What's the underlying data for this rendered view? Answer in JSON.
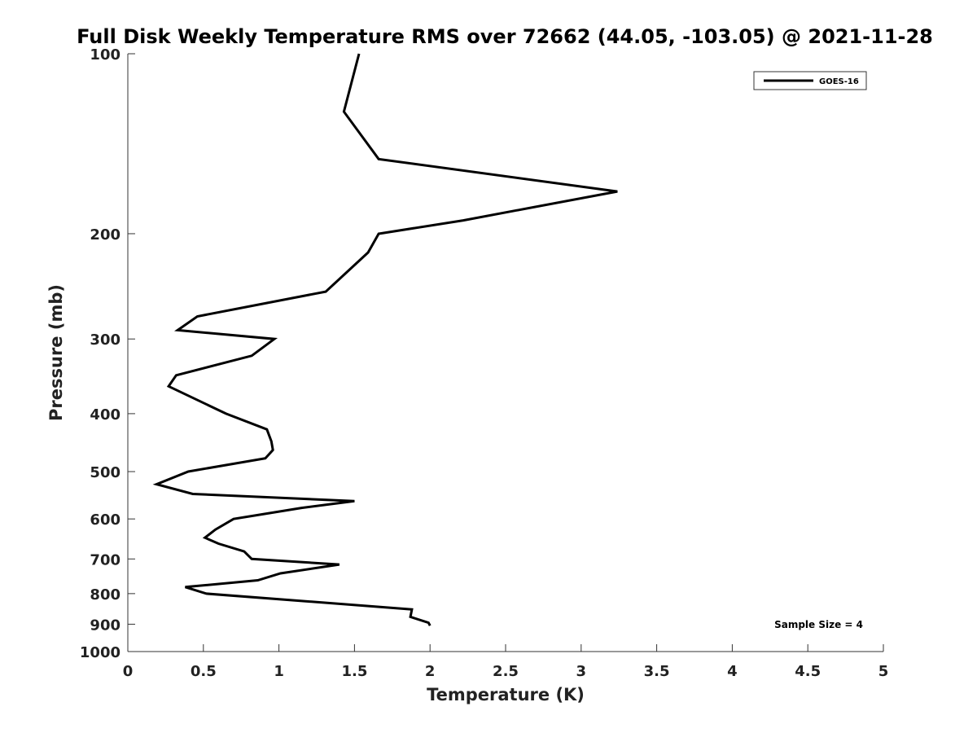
{
  "chart_data": {
    "type": "line",
    "title": "Full Disk Weekly Temperature RMS over 72662 (44.05, -103.05) @ 2021-11-28",
    "xlabel": "Temperature (K)",
    "ylabel": "Pressure (mb)",
    "xlim": [
      0,
      5
    ],
    "ylim": [
      100,
      1000
    ],
    "y_scale": "log",
    "y_reversed": true,
    "grid": false,
    "legend_position": "top-right",
    "x_ticks": [
      0,
      0.5,
      1,
      1.5,
      2,
      2.5,
      3,
      3.5,
      4,
      4.5,
      5
    ],
    "x_tick_labels": [
      "0",
      "0.5",
      "1",
      "1.5",
      "2",
      "2.5",
      "3",
      "3.5",
      "4",
      "4.5",
      "5"
    ],
    "y_ticks": [
      100,
      200,
      300,
      400,
      500,
      600,
      700,
      800,
      900,
      1000
    ],
    "y_tick_labels": [
      "100",
      "200",
      "300",
      "400",
      "500",
      "600",
      "700",
      "800",
      "900",
      "1000"
    ],
    "series": [
      {
        "name": "GOES-16",
        "color": "#000000",
        "points": [
          {
            "x": 1.53,
            "y": 100
          },
          {
            "x": 1.43,
            "y": 125
          },
          {
            "x": 1.66,
            "y": 150
          },
          {
            "x": 3.24,
            "y": 170
          },
          {
            "x": 2.22,
            "y": 190
          },
          {
            "x": 1.66,
            "y": 200
          },
          {
            "x": 1.59,
            "y": 215
          },
          {
            "x": 1.31,
            "y": 250
          },
          {
            "x": 0.46,
            "y": 275
          },
          {
            "x": 0.33,
            "y": 290
          },
          {
            "x": 0.97,
            "y": 300
          },
          {
            "x": 0.82,
            "y": 320
          },
          {
            "x": 0.32,
            "y": 345
          },
          {
            "x": 0.27,
            "y": 360
          },
          {
            "x": 0.65,
            "y": 400
          },
          {
            "x": 0.92,
            "y": 425
          },
          {
            "x": 0.95,
            "y": 445
          },
          {
            "x": 0.96,
            "y": 460
          },
          {
            "x": 0.91,
            "y": 475
          },
          {
            "x": 0.4,
            "y": 500
          },
          {
            "x": 0.19,
            "y": 525
          },
          {
            "x": 0.43,
            "y": 545
          },
          {
            "x": 1.5,
            "y": 560
          },
          {
            "x": 1.15,
            "y": 575
          },
          {
            "x": 0.7,
            "y": 600
          },
          {
            "x": 0.58,
            "y": 625
          },
          {
            "x": 0.51,
            "y": 645
          },
          {
            "x": 0.6,
            "y": 660
          },
          {
            "x": 0.77,
            "y": 680
          },
          {
            "x": 0.82,
            "y": 700
          },
          {
            "x": 1.4,
            "y": 715
          },
          {
            "x": 1.01,
            "y": 740
          },
          {
            "x": 0.86,
            "y": 760
          },
          {
            "x": 0.38,
            "y": 780
          },
          {
            "x": 0.52,
            "y": 800
          },
          {
            "x": 1.88,
            "y": 850
          },
          {
            "x": 1.87,
            "y": 875
          },
          {
            "x": 1.99,
            "y": 895
          },
          {
            "x": 2.0,
            "y": 905
          }
        ]
      }
    ],
    "annotations": [
      {
        "text": "Sample Size = 4"
      }
    ]
  }
}
